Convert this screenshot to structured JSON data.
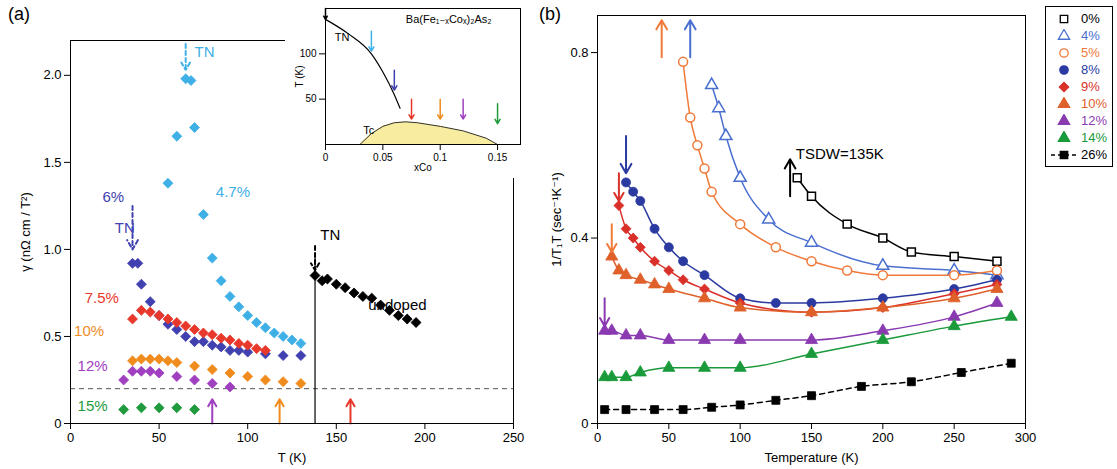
{
  "chart_data": [
    {
      "type": "scatter",
      "panel_label": "(a)",
      "xlabel": "T (K)",
      "ylabel": "γ (nΩ cm / T²)",
      "xlim": [
        0,
        250
      ],
      "ylim": [
        0,
        2.2
      ],
      "xticks": [
        0,
        50,
        100,
        150,
        200,
        250
      ],
      "yticks": [
        0,
        0.5,
        {
          "value": 1,
          "label": "1.0"
        },
        1.5,
        {
          "value": 2,
          "label": "2.0"
        }
      ],
      "series": [
        {
          "name": "4.7%",
          "color": "#3fb0e6",
          "marker": "diamond",
          "label_x": 82,
          "label_y": 1.33,
          "x": [
            55,
            60,
            65,
            68,
            70,
            75,
            80,
            85,
            90,
            95,
            100,
            105,
            110,
            115,
            120,
            125,
            130
          ],
          "values": [
            1.38,
            1.65,
            1.98,
            1.97,
            1.7,
            1.2,
            0.95,
            0.82,
            0.73,
            0.67,
            0.62,
            0.58,
            0.55,
            0.52,
            0.5,
            0.48,
            0.46
          ]
        },
        {
          "name": "6%",
          "color": "#4040b0",
          "marker": "diamond",
          "label_x": 18,
          "label_y": 1.3,
          "x": [
            35,
            38,
            40,
            45,
            50,
            55,
            60,
            65,
            70,
            75,
            80,
            85,
            90,
            95,
            100,
            110,
            120,
            130
          ],
          "values": [
            0.92,
            0.92,
            0.8,
            0.7,
            0.62,
            0.57,
            0.54,
            0.5,
            0.47,
            0.47,
            0.45,
            0.44,
            0.42,
            0.42,
            0.41,
            0.4,
            0.39,
            0.39
          ]
        },
        {
          "name": "7.5%",
          "color": "#e8382c",
          "marker": "diamond",
          "label_x": 8,
          "label_y": 0.72,
          "x": [
            35,
            40,
            45,
            50,
            55,
            60,
            65,
            70,
            75,
            80,
            85,
            90,
            95,
            100,
            105,
            110
          ],
          "values": [
            0.6,
            0.65,
            0.64,
            0.62,
            0.6,
            0.58,
            0.56,
            0.54,
            0.52,
            0.51,
            0.49,
            0.48,
            0.46,
            0.45,
            0.43,
            0.42
          ]
        },
        {
          "name": "10%",
          "color": "#f08c1e",
          "marker": "diamond",
          "label_x": 2,
          "label_y": 0.53,
          "x": [
            35,
            40,
            45,
            50,
            55,
            60,
            70,
            80,
            90,
            100,
            110,
            120,
            130
          ],
          "values": [
            0.36,
            0.37,
            0.37,
            0.37,
            0.36,
            0.35,
            0.33,
            0.31,
            0.29,
            0.27,
            0.25,
            0.24,
            0.23
          ]
        },
        {
          "name": "12%",
          "color": "#a040c0",
          "marker": "diamond",
          "label_x": 4,
          "label_y": 0.33,
          "x": [
            30,
            35,
            40,
            45,
            50,
            60,
            70,
            80,
            90
          ],
          "values": [
            0.25,
            0.3,
            0.3,
            0.3,
            0.29,
            0.27,
            0.25,
            0.23,
            0.21
          ]
        },
        {
          "name": "15%",
          "color": "#1f9a3c",
          "marker": "diamond",
          "label_x": 4,
          "label_y": 0.1,
          "x": [
            30,
            40,
            50,
            60,
            70
          ],
          "values": [
            0.08,
            0.09,
            0.09,
            0.09,
            0.08
          ]
        },
        {
          "name": "undoped",
          "color": "#000000",
          "marker": "diamond",
          "label_x": 168,
          "label_y": 0.68,
          "x": [
            138,
            142,
            145,
            150,
            155,
            160,
            165,
            170,
            175,
            180,
            185,
            190,
            195
          ],
          "values": [
            0.85,
            0.82,
            0.83,
            0.8,
            0.78,
            0.75,
            0.73,
            0.72,
            0.68,
            0.65,
            0.62,
            0.6,
            0.58
          ]
        }
      ],
      "hlines": [
        {
          "y": 0.2,
          "color": "#555555",
          "line_style": "dashed"
        }
      ],
      "vlines": [
        {
          "x": 138,
          "y1": 0,
          "y2": 0.95,
          "color": "#000000"
        }
      ],
      "arrows": [
        {
          "x": 35,
          "y1": 1.25,
          "y2": 1.0,
          "color": "#4040b0",
          "line_style": "dashed"
        },
        {
          "x": 65,
          "y1": 2.18,
          "y2": 2.03,
          "color": "#3fb0e6",
          "line_style": "dashed"
        },
        {
          "x": 138,
          "y1": 1.02,
          "y2": 0.88,
          "color": "#000000",
          "line_style": "dashed"
        },
        {
          "x": 80,
          "y1": 0.0,
          "y2": 0.14,
          "color": "#a040c0",
          "line_style": "solid"
        },
        {
          "x": 118,
          "y1": 0.0,
          "y2": 0.14,
          "color": "#f08c1e",
          "line_style": "solid"
        },
        {
          "x": 158,
          "y1": 0.0,
          "y2": 0.14,
          "color": "#e8382c",
          "line_style": "solid"
        }
      ],
      "annotations": [
        {
          "text": "TN",
          "x": 25,
          "y": 1.12,
          "color": "#4040b0"
        },
        {
          "text": "TN",
          "x": 70,
          "y": 2.13,
          "color": "#3fb0e6"
        },
        {
          "text": "TN",
          "x": 141,
          "y": 1.08,
          "color": "#000000"
        }
      ]
    },
    {
      "type": "line",
      "xlabel": "xCo",
      "ylabel": "T (K)",
      "xlim": [
        0,
        0.17
      ],
      "ylim": [
        0,
        150
      ],
      "xticks": [
        0,
        0.05,
        0.1,
        0.15
      ],
      "yticks": [
        50,
        100
      ],
      "series": [
        {
          "name": "TN",
          "type": "line",
          "color": "#000000",
          "x": [
            0,
            0.02,
            0.04,
            0.05,
            0.06,
            0.065
          ],
          "values": [
            138,
            122,
            100,
            80,
            55,
            40
          ]
        },
        {
          "name": "Tc",
          "type": "area",
          "color": "#f7eca0",
          "x": [
            0.03,
            0.04,
            0.05,
            0.06,
            0.07,
            0.08,
            0.1,
            0.12,
            0.14,
            0.15
          ],
          "values": [
            0,
            12,
            20,
            24,
            25,
            24,
            20,
            15,
            7,
            0
          ]
        }
      ],
      "arrows": [
        {
          "x": 0,
          "y1": 150,
          "y2": 138,
          "color": "#000000",
          "line_style": "solid"
        },
        {
          "x": 0.04,
          "y1": 125,
          "y2": 103,
          "color": "#3fb0e6",
          "line_style": "solid"
        },
        {
          "x": 0.06,
          "y1": 82,
          "y2": 60,
          "color": "#4040b0",
          "line_style": "solid"
        },
        {
          "x": 0.075,
          "y1": 50,
          "y2": 28,
          "color": "#e8382c",
          "line_style": "solid"
        },
        {
          "x": 0.1,
          "y1": 50,
          "y2": 28,
          "color": "#f08c1e",
          "line_style": "solid"
        },
        {
          "x": 0.12,
          "y1": 50,
          "y2": 28,
          "color": "#a040c0",
          "line_style": "solid"
        },
        {
          "x": 0.15,
          "y1": 45,
          "y2": 23,
          "color": "#1f9a3c",
          "line_style": "solid"
        }
      ],
      "annotations": [
        {
          "text": "Ba(Fe₁₋ₓCoₓ)₂As₂",
          "x": 0.07,
          "y": 138,
          "color": "#000000"
        },
        {
          "text": "TN",
          "x": 0.008,
          "y": 118,
          "color": "#000000"
        },
        {
          "text": "Tc",
          "x": 0.033,
          "y": 16,
          "color": "#000000"
        }
      ]
    },
    {
      "type": "scatter",
      "panel_label": "(b)",
      "legend": "right",
      "xlabel": "Temperature (K)",
      "ylabel": "1/T₁T (sec⁻¹K⁻¹)",
      "xlim": [
        0,
        300
      ],
      "ylim": [
        0,
        0.88
      ],
      "xticks": [
        0,
        50,
        100,
        150,
        200,
        250,
        300
      ],
      "yticks": [
        0,
        0.4,
        0.8
      ],
      "series": [
        {
          "name": "0%",
          "color": "#000000",
          "marker": "square-open",
          "line_style": "solid",
          "x": [
            140,
            150,
            175,
            200,
            220,
            250,
            280
          ],
          "values": [
            0.53,
            0.49,
            0.43,
            0.4,
            0.37,
            0.36,
            0.35
          ]
        },
        {
          "name": "4%",
          "color": "#4a6fd0",
          "marker": "triangle-open",
          "line_style": "solid",
          "x": [
            80,
            85,
            90,
            100,
            120,
            150,
            200,
            250,
            280
          ],
          "values": [
            0.73,
            0.68,
            0.62,
            0.53,
            0.44,
            0.39,
            0.34,
            0.33,
            0.32
          ]
        },
        {
          "name": "5%",
          "color": "#f07a3a",
          "marker": "circle-open",
          "line_style": "solid",
          "x": [
            60,
            65,
            70,
            75,
            80,
            100,
            125,
            150,
            175,
            200,
            250,
            280
          ],
          "values": [
            0.78,
            0.66,
            0.6,
            0.55,
            0.5,
            0.43,
            0.38,
            0.35,
            0.33,
            0.32,
            0.32,
            0.33
          ]
        },
        {
          "name": "8%",
          "color": "#2a3aa0",
          "marker": "circle",
          "line_style": "solid",
          "x": [
            20,
            25,
            30,
            40,
            50,
            60,
            75,
            100,
            125,
            150,
            200,
            250,
            280
          ],
          "values": [
            0.52,
            0.5,
            0.48,
            0.42,
            0.38,
            0.35,
            0.32,
            0.27,
            0.26,
            0.26,
            0.27,
            0.29,
            0.31
          ]
        },
        {
          "name": "9%",
          "color": "#d9302a",
          "marker": "diamond",
          "line_style": "solid",
          "x": [
            15,
            20,
            25,
            30,
            40,
            50,
            60,
            75,
            100,
            150,
            200,
            250,
            280
          ],
          "values": [
            0.47,
            0.42,
            0.4,
            0.38,
            0.35,
            0.33,
            0.31,
            0.29,
            0.26,
            0.24,
            0.25,
            0.28,
            0.3
          ]
        },
        {
          "name": "10%",
          "color": "#e0602a",
          "marker": "triangle",
          "line_style": "solid",
          "x": [
            10,
            15,
            20,
            30,
            40,
            50,
            75,
            100,
            150,
            200,
            250,
            280
          ],
          "values": [
            0.36,
            0.33,
            0.32,
            0.31,
            0.3,
            0.29,
            0.27,
            0.25,
            0.24,
            0.25,
            0.27,
            0.29
          ]
        },
        {
          "name": "12%",
          "color": "#8a3ab0",
          "marker": "triangle",
          "line_style": "solid",
          "x": [
            5,
            10,
            20,
            30,
            50,
            75,
            100,
            150,
            200,
            250,
            280
          ],
          "values": [
            0.2,
            0.2,
            0.19,
            0.19,
            0.18,
            0.18,
            0.18,
            0.18,
            0.2,
            0.23,
            0.26
          ]
        },
        {
          "name": "14%",
          "color": "#1a9a3a",
          "marker": "triangle",
          "line_style": "solid",
          "x": [
            5,
            10,
            20,
            30,
            50,
            75,
            100,
            150,
            200,
            250,
            290
          ],
          "values": [
            0.1,
            0.1,
            0.1,
            0.11,
            0.12,
            0.12,
            0.12,
            0.15,
            0.18,
            0.21,
            0.23
          ]
        },
        {
          "name": "26%",
          "color": "#000000",
          "marker": "square",
          "line_style": "dashed",
          "x": [
            5,
            20,
            40,
            60,
            80,
            100,
            125,
            150,
            185,
            220,
            255,
            290
          ],
          "values": [
            0.03,
            0.03,
            0.03,
            0.03,
            0.035,
            0.04,
            0.05,
            0.06,
            0.08,
            0.09,
            0.11,
            0.13
          ]
        }
      ],
      "arrows": [
        {
          "x": 45,
          "y1": 0.79,
          "y2": 0.87,
          "color": "#f07a3a",
          "line_style": "solid"
        },
        {
          "x": 65,
          "y1": 0.79,
          "y2": 0.87,
          "color": "#4a6fd0",
          "line_style": "solid"
        },
        {
          "x": 135,
          "y1": 0.49,
          "y2": 0.57,
          "color": "#000000",
          "line_style": "solid"
        },
        {
          "x": 20,
          "y1": 0.62,
          "y2": 0.54,
          "color": "#2a3aa0",
          "line_style": "solid"
        },
        {
          "x": 15,
          "y1": 0.54,
          "y2": 0.48,
          "color": "#d9302a",
          "line_style": "solid"
        },
        {
          "x": 10,
          "y1": 0.43,
          "y2": 0.37,
          "color": "#f07a3a",
          "line_style": "solid"
        },
        {
          "x": 5,
          "y1": 0.27,
          "y2": 0.21,
          "color": "#8a3ab0",
          "line_style": "solid"
        }
      ],
      "annotations": [
        {
          "text": "TSDW=135K",
          "x": 139,
          "y": 0.58,
          "color": "#000000"
        }
      ]
    }
  ]
}
